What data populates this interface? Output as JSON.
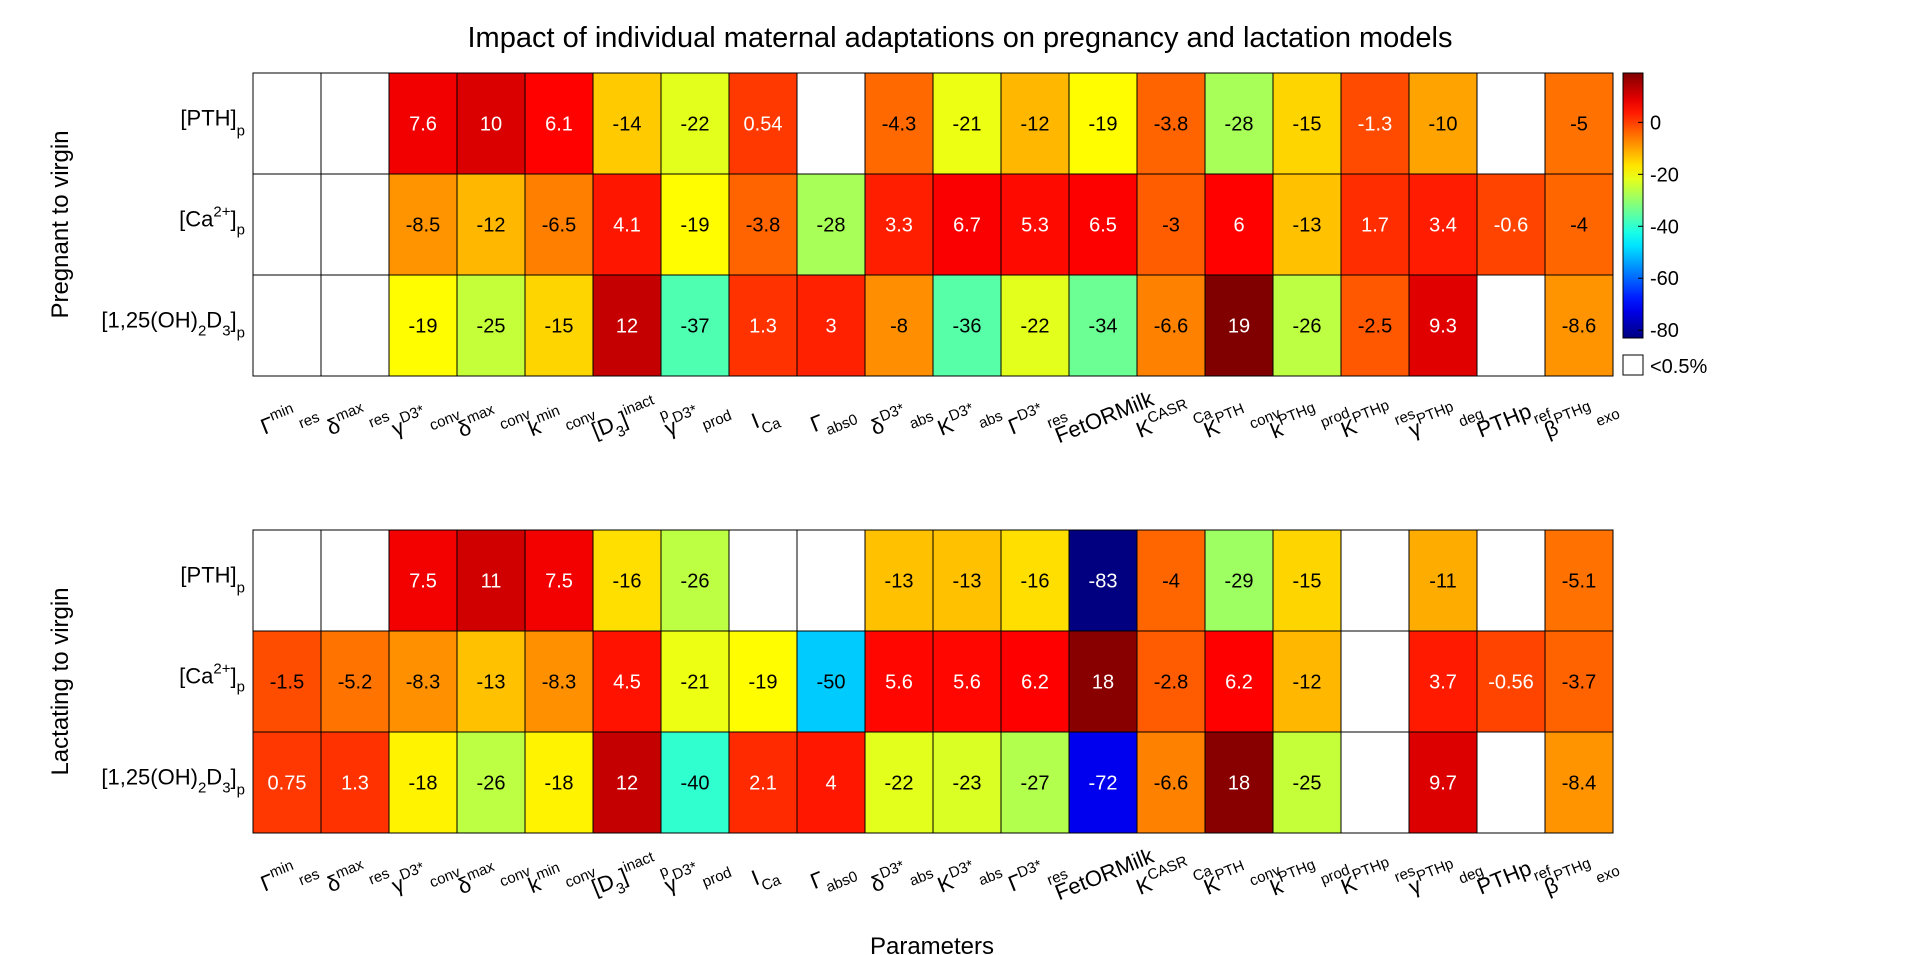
{
  "chart_data": {
    "type": "heatmap",
    "title": "Impact of individual maternal adaptations on pregnancy and lactation models",
    "xlabel": "Parameters",
    "parameters": [
      {
        "base": "Γ",
        "sup": "min",
        "sub": "res"
      },
      {
        "base": "δ",
        "sup": "max",
        "sub": "res"
      },
      {
        "base": "γ",
        "sup": "D3*",
        "sub": "conv"
      },
      {
        "base": "δ",
        "sup": "max",
        "sub": "conv"
      },
      {
        "base": "k",
        "sup": "min",
        "sub": "conv"
      },
      {
        "base": "[D",
        "sub": "3",
        "tail": "]",
        "sup": "inact",
        "sub2": "p"
      },
      {
        "base": "γ",
        "sup": "D3*",
        "sub": "prod"
      },
      {
        "base": "I",
        "sup": "",
        "sub": "Ca"
      },
      {
        "base": "Γ",
        "sup": "",
        "sub": "abs0"
      },
      {
        "base": "δ",
        "sup": "D3*",
        "sub": "abs"
      },
      {
        "base": "K",
        "sup": "D3*",
        "sub": "abs"
      },
      {
        "base": "Γ",
        "sup": "D3*",
        "sub": "res"
      },
      {
        "base": "FetORMilk",
        "sup": "",
        "sub": ""
      },
      {
        "base": "K",
        "sup": "CASR",
        "sub": "Ca"
      },
      {
        "base": "K",
        "sup": "PTH",
        "sub": "conv"
      },
      {
        "base": "k",
        "sup": "PTHg",
        "sub": "prod"
      },
      {
        "base": "K",
        "sup": "PTHp",
        "sub": "res"
      },
      {
        "base": "γ",
        "sup": "PTHp",
        "sub": "deg"
      },
      {
        "base": "PTHp",
        "sup": "",
        "sub": "ref"
      },
      {
        "base": "β",
        "sup": "PTHg",
        "sub": "exo"
      }
    ],
    "rows": [
      {
        "pre": "[PTH]",
        "sup": "",
        "sub": "p"
      },
      {
        "pre": "[Ca",
        "sup": "2+",
        "mid": "]",
        "sub": "p"
      },
      {
        "pre": "[1,25(OH)",
        "sub1": "2",
        "mid": "D",
        "sub2": "3",
        "post": "]",
        "sub": "p"
      }
    ],
    "panels": [
      {
        "ylabel": "Pregnant to virgin",
        "values": [
          [
            null,
            null,
            7.6,
            10,
            6.1,
            -14,
            -22,
            0.54,
            null,
            -4.3,
            -21,
            -12,
            -19,
            -3.8,
            -28,
            -15,
            -1.3,
            -10,
            null,
            -5
          ],
          [
            null,
            null,
            -8.5,
            -12,
            -6.5,
            4.1,
            -19,
            -3.8,
            -28,
            3.3,
            6.7,
            5.3,
            6.5,
            -3,
            6,
            -13,
            1.7,
            3.4,
            -0.6,
            -4
          ],
          [
            null,
            null,
            -19,
            -25,
            -15,
            12,
            -37,
            1.3,
            3,
            -8,
            -36,
            -22,
            -34,
            -6.6,
            19,
            -26,
            -2.5,
            9.3,
            null,
            -8.6
          ]
        ]
      },
      {
        "ylabel": "Lactating to virgin",
        "values": [
          [
            null,
            null,
            7.5,
            11,
            7.5,
            -16,
            -26,
            null,
            null,
            -13,
            -13,
            -16,
            -83,
            -4,
            -29,
            -15,
            null,
            -11,
            null,
            -5.1
          ],
          [
            -1.5,
            -5.2,
            -8.3,
            -13,
            -8.3,
            4.5,
            -21,
            -19,
            -50,
            5.6,
            5.6,
            6.2,
            18,
            -2.8,
            6.2,
            -12,
            null,
            3.7,
            -0.56,
            -3.7
          ],
          [
            0.75,
            1.3,
            -18,
            -26,
            -18,
            12,
            -40,
            2.1,
            4,
            -22,
            -23,
            -27,
            -72,
            -6.6,
            18,
            -25,
            null,
            9.7,
            null,
            -8.4
          ]
        ]
      }
    ],
    "colorbar": {
      "colormap": "jet",
      "limits": [
        -83,
        19
      ],
      "ticks": [
        0,
        -20,
        -40,
        -60,
        -80
      ],
      "tick_labels": [
        "0",
        "-20",
        "-40",
        "-60",
        "-80"
      ],
      "null_legend": "<0.5%"
    },
    "colors": {
      "empty_cell": "#ffffff",
      "grid": "#000000",
      "text_dark": "#000000",
      "text_light": "#ffffff"
    }
  }
}
